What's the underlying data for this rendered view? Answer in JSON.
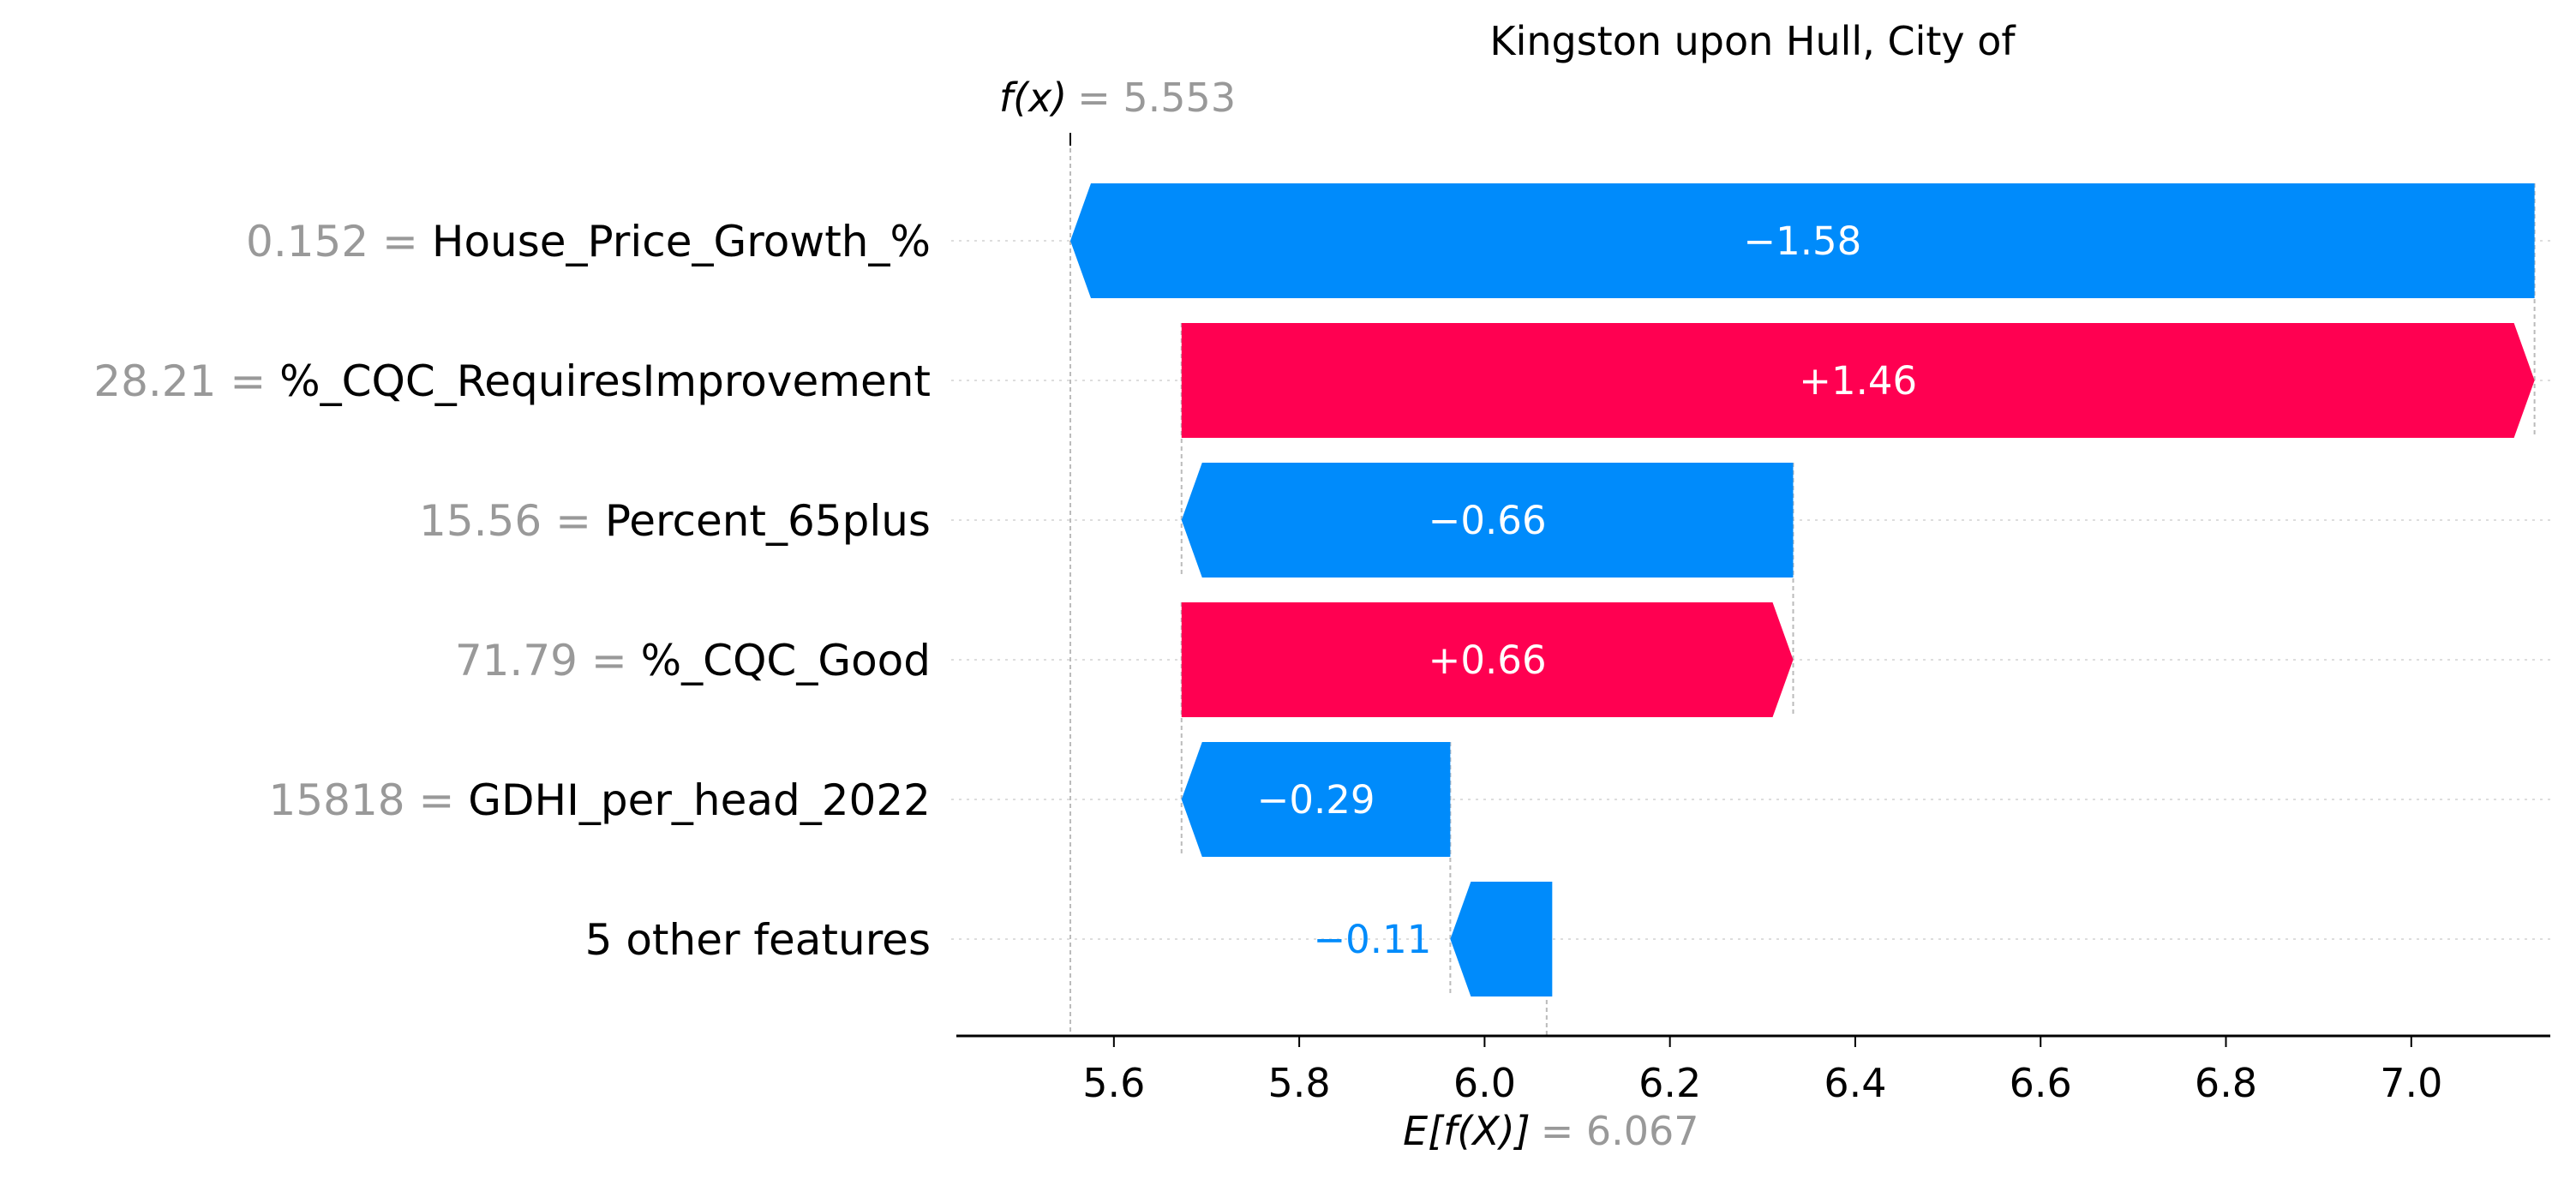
{
  "chart_data": {
    "type": "waterfall",
    "title": "Kingston upon Hull, City of",
    "base_value": 6.067,
    "output_value": 5.553,
    "fx_label": "f(x)",
    "fx_value_text": "= 5.553",
    "ex_label": "E[f(X)]",
    "ex_value_text": "= 6.067",
    "xlim": [
      5.43,
      7.15
    ],
    "xticks": [
      5.6,
      5.8,
      6.0,
      6.2,
      6.4,
      6.6,
      6.8,
      7.0
    ],
    "xtick_labels": [
      "5.6",
      "5.8",
      "6.0",
      "6.2",
      "6.4",
      "6.6",
      "6.8",
      "7.0"
    ],
    "features": [
      {
        "value": "0.152",
        "name": "House_Price_Growth_%",
        "contribution": -1.58,
        "label": "−1.58"
      },
      {
        "value": "28.21",
        "name": "%_CQC_RequiresImprovement",
        "contribution": 1.46,
        "label": "+1.46"
      },
      {
        "value": "15.56",
        "name": "Percent_65plus",
        "contribution": -0.66,
        "label": "−0.66"
      },
      {
        "value": "71.79",
        "name": "%_CQC_Good",
        "contribution": 0.66,
        "label": "+0.66"
      },
      {
        "value": "15818",
        "name": "GDHI_per_head_2022",
        "contribution": -0.29,
        "label": "−0.29"
      },
      {
        "value": "",
        "name": "5 other features",
        "contribution": -0.11,
        "label": "−0.11"
      }
    ],
    "colors": {
      "positive": "#ff0051",
      "negative": "#008bfb",
      "gray_text": "#999999"
    }
  }
}
